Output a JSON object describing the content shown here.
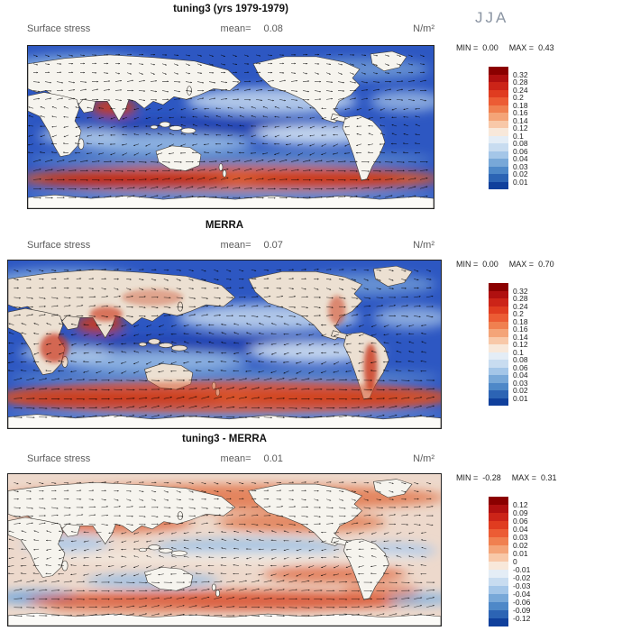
{
  "header": {
    "season": "JJA"
  },
  "labels": {
    "min": "MIN =",
    "max": "MAX =",
    "mean": "mean="
  },
  "chart_data": [
    {
      "type": "heatmap",
      "title": "tuning3 (yrs 1979-1979)",
      "variable": "Surface stress",
      "mean": "0.08",
      "units": "N/m²",
      "min": "0.00",
      "max": "0.43",
      "field": "abs",
      "colorbar": {
        "ticks": [
          "0.32",
          "0.28",
          "0.24",
          "0.2",
          "0.18",
          "0.16",
          "0.14",
          "0.12",
          "0.1",
          "0.08",
          "0.06",
          "0.04",
          "0.03",
          "0.02",
          "0.01"
        ],
        "colors": [
          "#8b0000",
          "#b01010",
          "#cc2418",
          "#e03c20",
          "#ec5c34",
          "#f08050",
          "#f4a478",
          "#f8c8a8",
          "#f8e8da",
          "#e4edf6",
          "#c8dcf0",
          "#a4c6e8",
          "#78a8d8",
          "#4e88c8",
          "#2c64b4",
          "#10409c"
        ]
      }
    },
    {
      "type": "heatmap",
      "title": "MERRA",
      "variable": "Surface stress",
      "mean": "0.07",
      "units": "N/m²",
      "min": "0.00",
      "max": "0.70",
      "field": "abs",
      "colorbar": {
        "ticks": [
          "0.32",
          "0.28",
          "0.24",
          "0.2",
          "0.18",
          "0.16",
          "0.14",
          "0.12",
          "0.1",
          "0.08",
          "0.06",
          "0.04",
          "0.03",
          "0.02",
          "0.01"
        ],
        "colors": [
          "#8b0000",
          "#b01010",
          "#cc2418",
          "#e03c20",
          "#ec5c34",
          "#f08050",
          "#f4a478",
          "#f8c8a8",
          "#f8e8da",
          "#e4edf6",
          "#c8dcf0",
          "#a4c6e8",
          "#78a8d8",
          "#4e88c8",
          "#2c64b4",
          "#10409c"
        ]
      }
    },
    {
      "type": "heatmap",
      "title": "tuning3 - MERRA",
      "variable": "Surface stress",
      "mean": "0.01",
      "units": "N/m²",
      "min": "-0.28",
      "max": "0.31",
      "field": "diff",
      "colorbar": {
        "ticks": [
          "0.12",
          "0.09",
          "0.06",
          "0.04",
          "0.03",
          "0.02",
          "0.01",
          "0",
          "-0.01",
          "-0.02",
          "-0.03",
          "-0.04",
          "-0.06",
          "-0.09",
          "-0.12"
        ],
        "colors": [
          "#8b0000",
          "#b01010",
          "#cc2418",
          "#e03c20",
          "#ec5c34",
          "#f08050",
          "#f4a478",
          "#f8c8a8",
          "#f8e8da",
          "#e4edf6",
          "#c8dcf0",
          "#a4c6e8",
          "#78a8d8",
          "#4e88c8",
          "#2c64b4",
          "#10409c"
        ]
      }
    }
  ]
}
